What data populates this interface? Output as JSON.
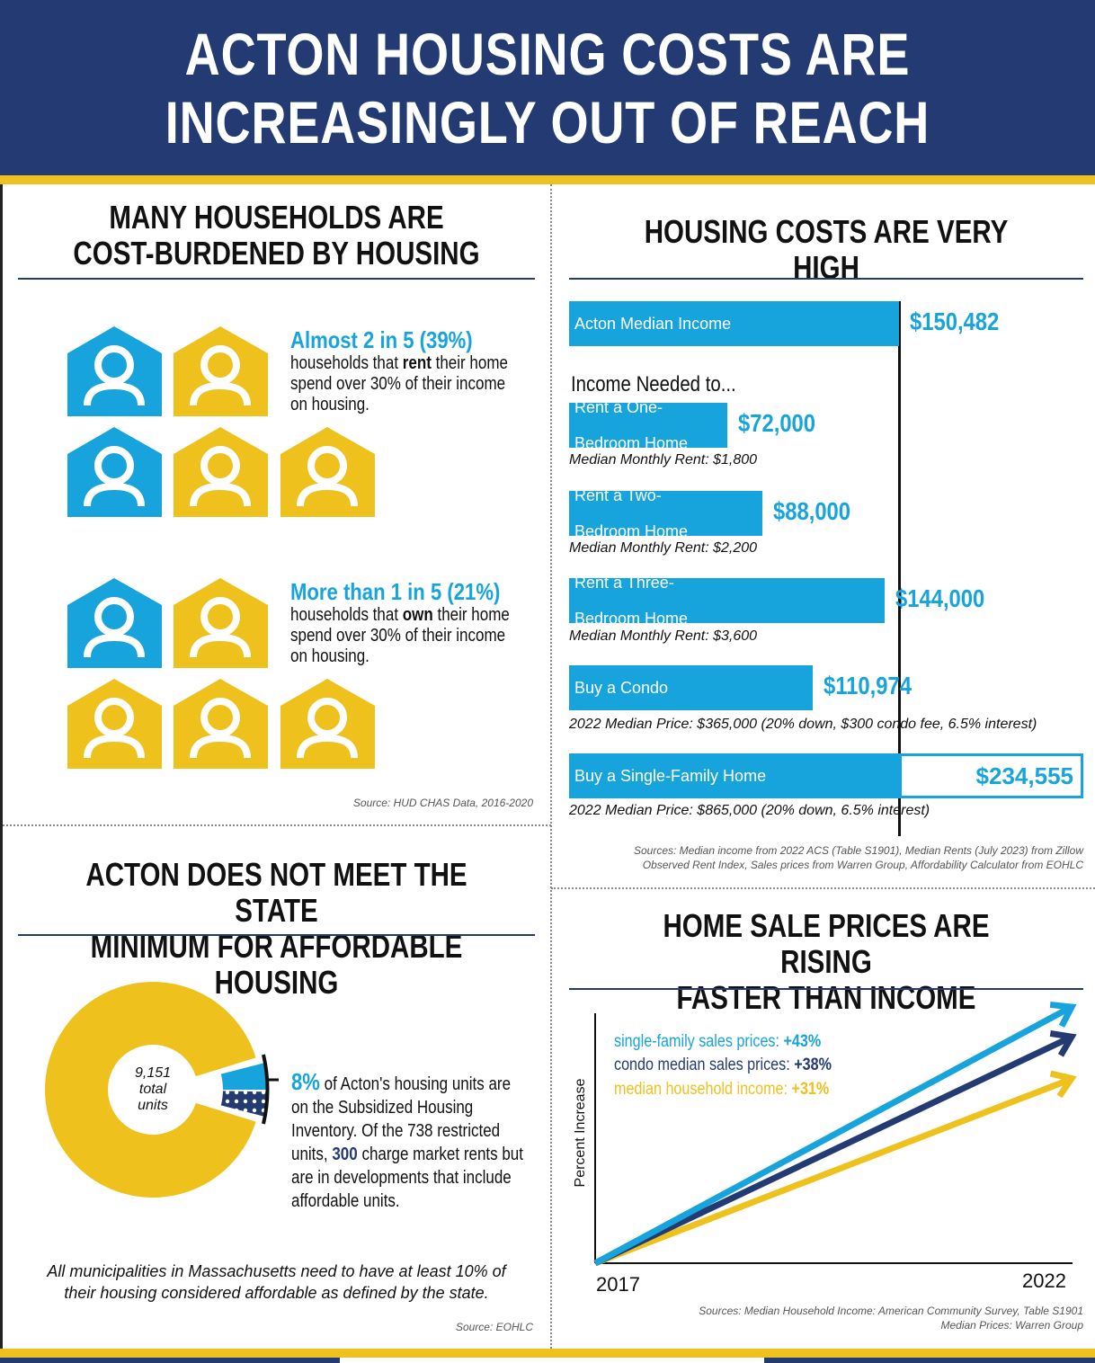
{
  "header": {
    "line1": "ACTON HOUSING COSTS ARE",
    "line2": "INCREASINGLY OUT OF REACH"
  },
  "colors": {
    "navy": "#233a73",
    "blue": "#17a4dc",
    "yellow": "#eec11c"
  },
  "burden": {
    "title1": "MANY HOUSEHOLDS ARE",
    "title2": "COST-BURDENED BY HOUSING",
    "renters": {
      "headline": "Almost 2 in 5 (39%)",
      "pre": "households that ",
      "bold": "rent",
      "post": " their home",
      "line2": "spend over 30% of their income",
      "line3": "on housing.",
      "share": 0.39,
      "icons": [
        "blue",
        "yellow",
        "blue",
        "yellow",
        "yellow"
      ]
    },
    "owners": {
      "headline": "More than 1 in 5 (21%)",
      "pre": "households that ",
      "bold": "own",
      "post": " their home",
      "line2": "spend over 30% of their income",
      "line3": "on housing.",
      "share": 0.21,
      "icons": [
        "blue",
        "yellow",
        "yellow",
        "yellow",
        "yellow"
      ]
    },
    "source": "Source: HUD CHAS Data, 2016-2020"
  },
  "affordable": {
    "title1": "ACTON DOES NOT MEET THE STATE",
    "title2": "MINIMUM FOR AFFORDABLE HOUSING",
    "center1": "9,151",
    "center2": "total",
    "center3": "units",
    "pct": "8%",
    "t1": " of Acton's housing units are",
    "t2": "on the Subsidized Housing",
    "t3": "Inventory. Of the 738 restricted",
    "t4a": "units, ",
    "t4b": "300",
    "t4c": " charge market rents but",
    "t5": "are in developments that include",
    "t6": "affordable units.",
    "note1": "All municipalities in Massachusetts need to have at least 10% of",
    "note2": "their housing considered affordable as defined by the state.",
    "source": "Source: EOHLC"
  },
  "costs": {
    "title": "HOUSING COSTS ARE VERY HIGH",
    "needed": "Income Needed to...",
    "sources1": "Sources: Median income from 2022 ACS (Table S1901), Median Rents (July 2023) from Zillow",
    "sources2": "Observed Rent Index, Sales prices from Warren Group, Affordability Calculator from EOHLC"
  },
  "trend": {
    "title1": "HOME SALE PRICES ARE RISING",
    "title2": "FASTER THAN INCOME",
    "ylabel": "Percent Increase",
    "x0": "2017",
    "x1": "2022",
    "l1a": "single-family sales prices: ",
    "l1b": "+43%",
    "l2a": "condo median sales prices: ",
    "l2b": "+38%",
    "l3a": "median household income: ",
    "l3b": "+31%",
    "sources1": "Sources: Median Household Income: American Community Survey, Table S1901",
    "sources2": "Median Prices: Warren Group"
  },
  "chart_data": [
    {
      "type": "bar",
      "orientation": "horizontal",
      "title": "HOUSING COSTS ARE VERY HIGH",
      "categories": [
        "Acton Median Income",
        "Rent a One-Bedroom Home",
        "Rent a Two-Bedroom Home",
        "Rent a Three-Bedroom Home",
        "Buy a Condo",
        "Buy a Single-Family Home"
      ],
      "labels": [
        [
          "Acton Median Income"
        ],
        [
          "Rent a One-",
          "Bedroom Home"
        ],
        [
          "Rent a Two-",
          "Bedroom Home"
        ],
        [
          "Rent a Three-",
          "Bedroom Home"
        ],
        [
          "Buy a Condo"
        ],
        [
          "Buy a Single-Family Home"
        ]
      ],
      "values": [
        150482,
        72000,
        88000,
        144000,
        110974,
        234555
      ],
      "value_labels": [
        "$150,482",
        "$72,000",
        "$88,000",
        "$144,000",
        "$110,974",
        "$234,555"
      ],
      "notes": [
        "",
        "Median Monthly Rent: $1,800",
        "Median Monthly Rent: $2,200",
        "Median Monthly Rent: $3,600",
        "2022 Median Price: $365,000 (20% down, $300 condo fee, 6.5% interest)",
        "2022 Median Price: $865,000 (20% down, 6.5% interest)"
      ],
      "reference_line": 150482
    },
    {
      "type": "pie",
      "donut": true,
      "total": 9151,
      "slices": [
        {
          "label": "Subsidized Housing Inventory",
          "percent": 8,
          "color": "#17a4dc"
        },
        {
          "label": "Other units",
          "percent": 92,
          "color": "#eec11c"
        }
      ]
    },
    {
      "type": "line",
      "x": [
        2017,
        2022
      ],
      "ylabel": "Percent Increase",
      "series": [
        {
          "name": "single-family sales prices",
          "values": [
            0,
            43
          ],
          "color": "#17a4dc"
        },
        {
          "name": "condo median sales prices",
          "values": [
            0,
            38
          ],
          "color": "#233a73"
        },
        {
          "name": "median household income",
          "values": [
            0,
            31
          ],
          "color": "#eec11c"
        }
      ]
    }
  ]
}
